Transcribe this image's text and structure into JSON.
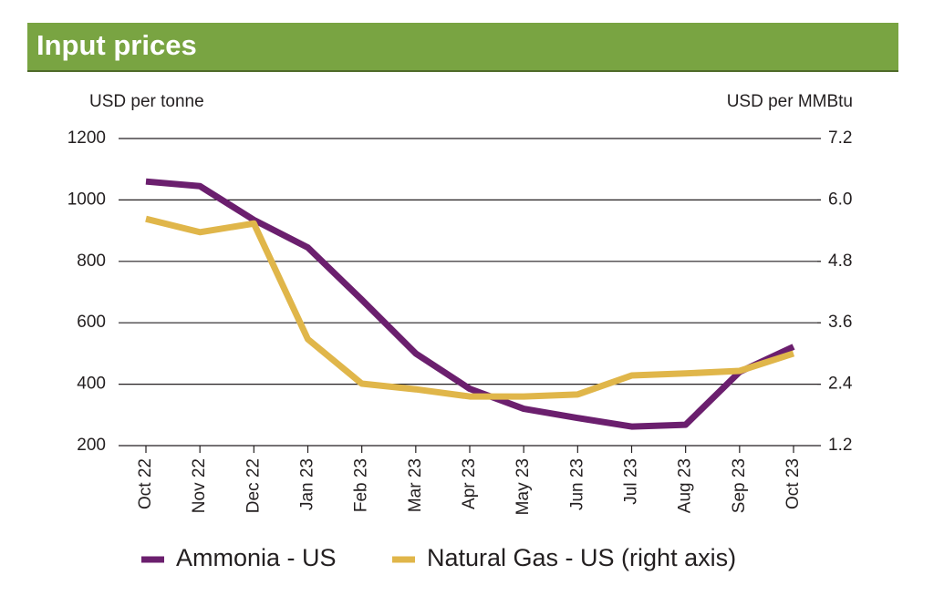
{
  "chart_data": {
    "type": "line",
    "title": "Input prices",
    "y_label": "USD per tonne",
    "y2_label": "USD per MMBtu",
    "categories": [
      "Oct 22",
      "Nov 22",
      "Dec 22",
      "Jan 23",
      "Feb 23",
      "Mar 23",
      "Apr 23",
      "May 23",
      "Jun 23",
      "Jul 23",
      "Aug 23",
      "Sep 23",
      "Oct 23"
    ],
    "series": [
      {
        "name": "Ammonia - US",
        "color": "#6b1f6e",
        "values": [
          1060,
          1045,
          935,
          845,
          675,
          500,
          385,
          320,
          290,
          262,
          268,
          440,
          522
        ]
      },
      {
        "name": "Natural Gas - US (right axis)",
        "color": "#e0b64a",
        "axis": "y2",
        "values": [
          5.63,
          5.37,
          5.54,
          3.28,
          2.41,
          2.3,
          2.16,
          2.16,
          2.2,
          2.57,
          2.61,
          2.66,
          3.0
        ]
      }
    ],
    "ylim": [
      200,
      1200
    ],
    "yticks": [
      200,
      400,
      600,
      800,
      1000,
      1200
    ],
    "y2lim": [
      1.2,
      7.2
    ],
    "y2ticks": [
      1.2,
      2.4,
      3.6,
      4.8,
      {
        "value": 6,
        "label": "6.0"
      },
      7.2
    ],
    "grid": true,
    "legend": "bottom"
  }
}
